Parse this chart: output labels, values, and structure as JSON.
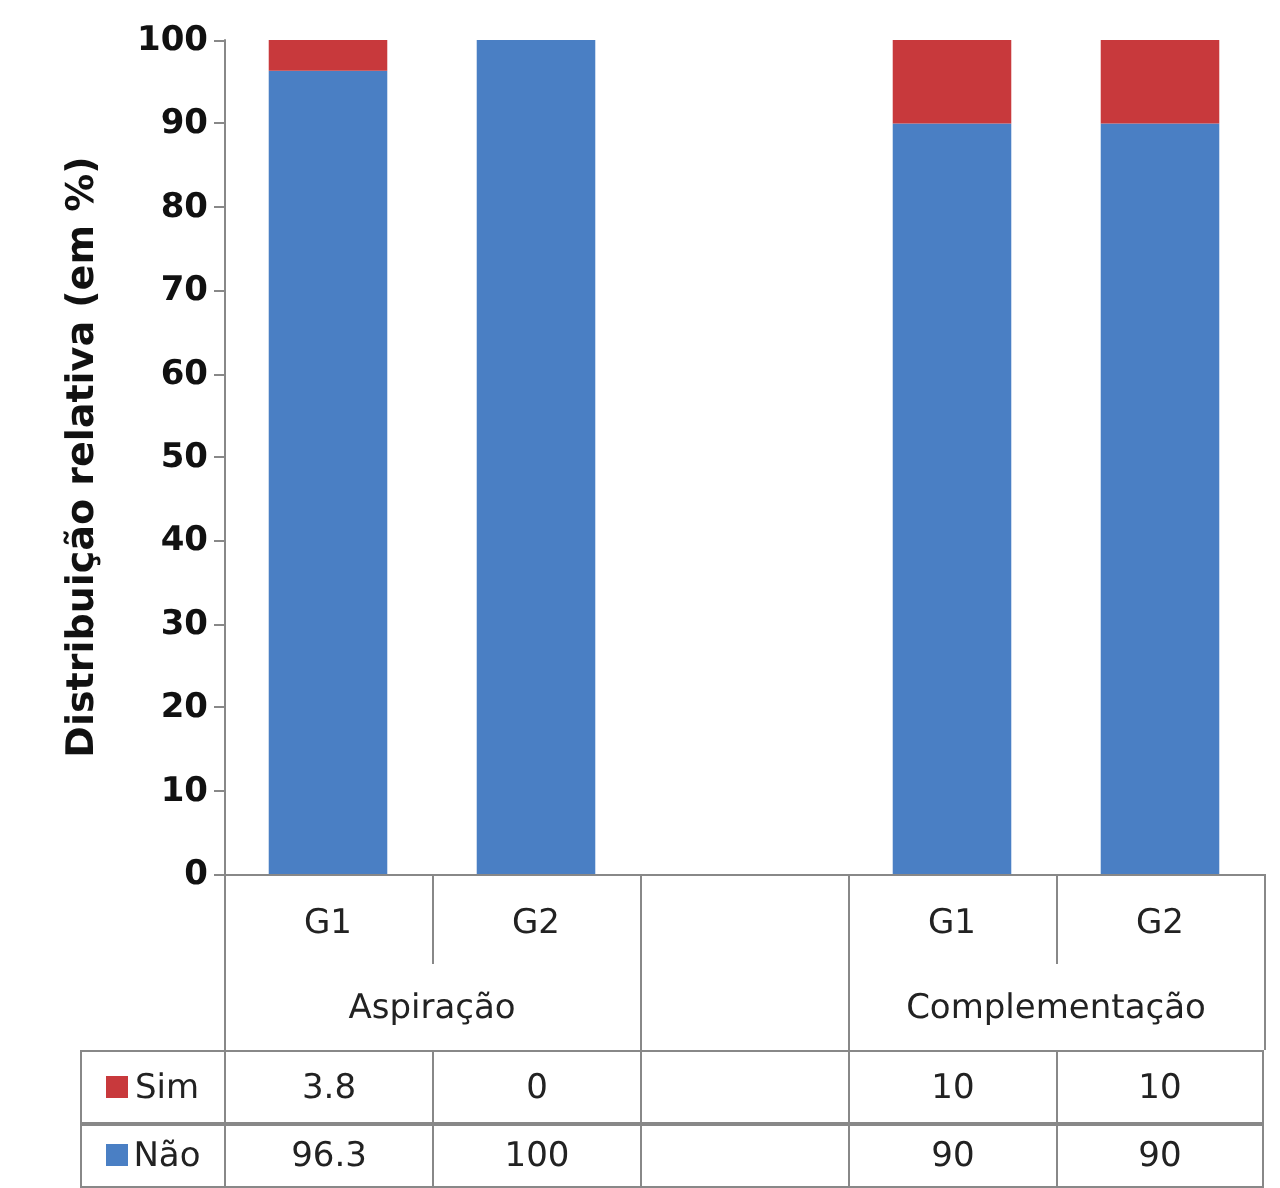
{
  "chart_data": {
    "type": "bar",
    "stacked": true,
    "ylabel": "Distribuição relativa (em %)",
    "categories": [
      "G1",
      "G2",
      null,
      "G1",
      "G2"
    ],
    "annotations": [
      "Aspiração",
      "Complementação"
    ],
    "series": [
      {
        "name": "Não",
        "color": "#4a7fc4",
        "values": [
          96.3,
          100,
          null,
          90,
          90
        ]
      },
      {
        "name": "Sim",
        "color": "#c8393c",
        "values": [
          3.8,
          0,
          null,
          10,
          10
        ]
      }
    ],
    "ylim": [
      0,
      100
    ],
    "yticks": [
      0,
      10,
      20,
      30,
      40,
      50,
      60,
      70,
      80,
      90,
      100
    ],
    "grid": false,
    "legend": "bottom",
    "data_labels": true
  }
}
